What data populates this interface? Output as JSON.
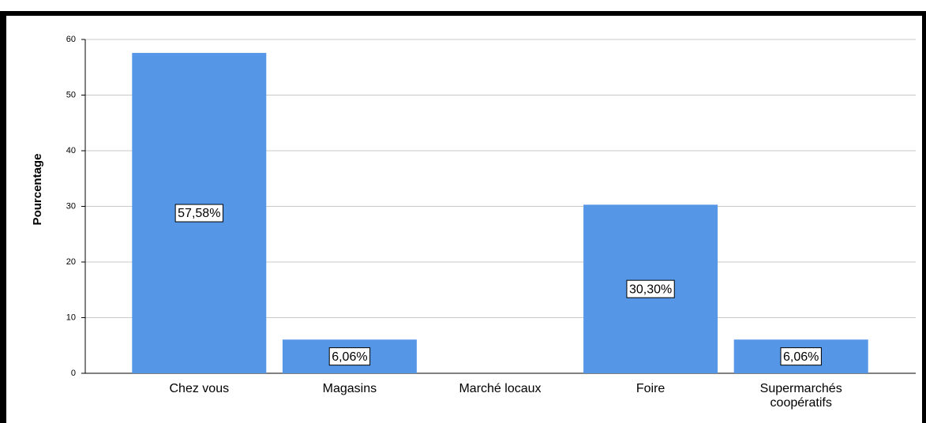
{
  "chart_data": {
    "type": "bar",
    "y_label": "Pourcentage",
    "categories": [
      "Chez vous",
      "Magasins",
      "Marché locaux",
      "Foire",
      "Supermarchés coopératifs"
    ],
    "values": [
      57.58,
      6.06,
      0,
      30.3,
      6.06
    ],
    "value_labels": [
      "57,58%",
      "6,06%",
      null,
      "30,30%",
      "6,06%"
    ],
    "color": "#5596e6",
    "ylim": [
      0,
      60
    ],
    "yticks": [
      0,
      10,
      20,
      30,
      40,
      50,
      60
    ],
    "grid": true
  }
}
